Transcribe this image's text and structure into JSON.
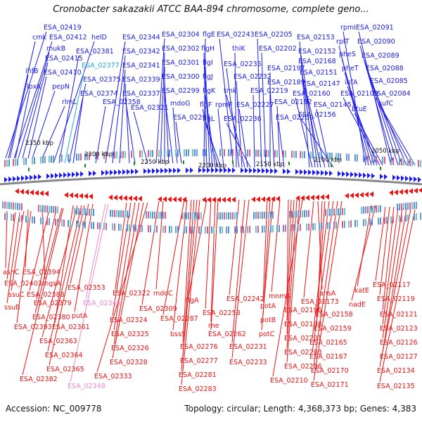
{
  "title": "Cronobacter sakazakii ATCC BAA-894 chromosome, complete geno...",
  "footer": {
    "accession": "Accession: NC_009778",
    "summary": "Topology: circular; Length: 4,368,373 bp; Genes: 4,383"
  },
  "colors": {
    "forward": "#1a1aee",
    "reverse": "#ee1111",
    "highlight_forward": "#22aadd",
    "highlight_reverse": "#ee88cc",
    "backbone": "#888888"
  },
  "scale_labels": [
    "2350 kbp",
    "2300 kbp",
    "2250 kbp",
    "2200 kbp",
    "2150 kbp",
    "2100 kbp",
    "2050 kbp"
  ],
  "top_labels": [
    "ESA_02419",
    "cmk",
    "ESA_02412",
    "mukB",
    "ESA_02415",
    "ihfB",
    "ESA_02410",
    "lpxK",
    "pepN",
    "rlmL",
    "helD",
    "ESA_02381",
    "ESA_02377",
    "ESA_02375",
    "ESA_02374",
    "ESA_02358",
    "ESA_02344",
    "ESA_02342",
    "ESA_02341",
    "ESA_02339",
    "ESA_02337",
    "ESA_02321",
    "ESA_02304",
    "ESA_02302",
    "ESA_02301",
    "ESA_02300",
    "ESA_02299",
    "mdoG",
    "ESA_02295",
    "flgE",
    "flgH",
    "flgI",
    "flgJ",
    "flgK",
    "flgF",
    "flgL",
    "rpmF",
    "ESA_02243",
    "thiK",
    "ESA_02235",
    "ESA_02232",
    "tmk",
    "ESA_02227",
    "ESA_02236",
    "ESA_02205",
    "ESA_02202",
    "ESA_02197",
    "ESA_02219",
    "ESA_02189",
    "ESA_02182",
    "ESA_02200",
    "ESA_02153",
    "ESA_02168",
    "ESA_02152",
    "ESA_02151",
    "ESA_02147",
    "ESA_02160",
    "ESA_02145",
    "ESA_02156",
    "rpmI",
    "rplT",
    "pheS",
    "pheT",
    "ihfA",
    "ESA_02109",
    "btuE",
    "ESA_02091",
    "ESA_02090",
    "ESA_02089",
    "ESA_02088",
    "ESA_02085",
    "ESA_02084",
    "sufC"
  ],
  "bottom_labels": [
    "asnC",
    "ESA_02394",
    "ESA_02403",
    "mgsA",
    "ssuC",
    "ESA_02388",
    "ssuB",
    "ESA_02379",
    "ESA_02380",
    "ESA_02393",
    "ESA_02361",
    "ESA_02363",
    "ESA_02364",
    "ESA_02365",
    "ESA_02382",
    "ESA_02353",
    "putA",
    "ESA_02346",
    "ESA_02348",
    "ESA_02322",
    "ESA_02324",
    "ESA_02325",
    "ESA_02326",
    "ESA_02328",
    "ESA_02333",
    "mdoC",
    "ESA_02309",
    "ESA_02287",
    "bssS",
    "ESA_02276",
    "ESA_02277",
    "ESA_02281",
    "ESA_02283",
    "flgA",
    "ESA_02258",
    "rne",
    "ESA_02262",
    "ESA_02242",
    "ESA_02231",
    "ESA_02233",
    "mnmA",
    "potA",
    "potB",
    "potC",
    "ESA_02196",
    "ESA_02198",
    "ESA_02201",
    "ESA_02203",
    "ESA_02206",
    "ESA_02210",
    "ESA_02173",
    "ansA",
    "ESA_02158",
    "ESA_02159",
    "ESA_02165",
    "ESA_02167",
    "ESA_02170",
    "ESA_02171",
    "katE",
    "nadE",
    "ESA_02117",
    "ESA_02119",
    "ESA_02121",
    "ESA_02123",
    "ESA_02126",
    "ESA_02127",
    "ESA_02134",
    "ESA_02135"
  ]
}
